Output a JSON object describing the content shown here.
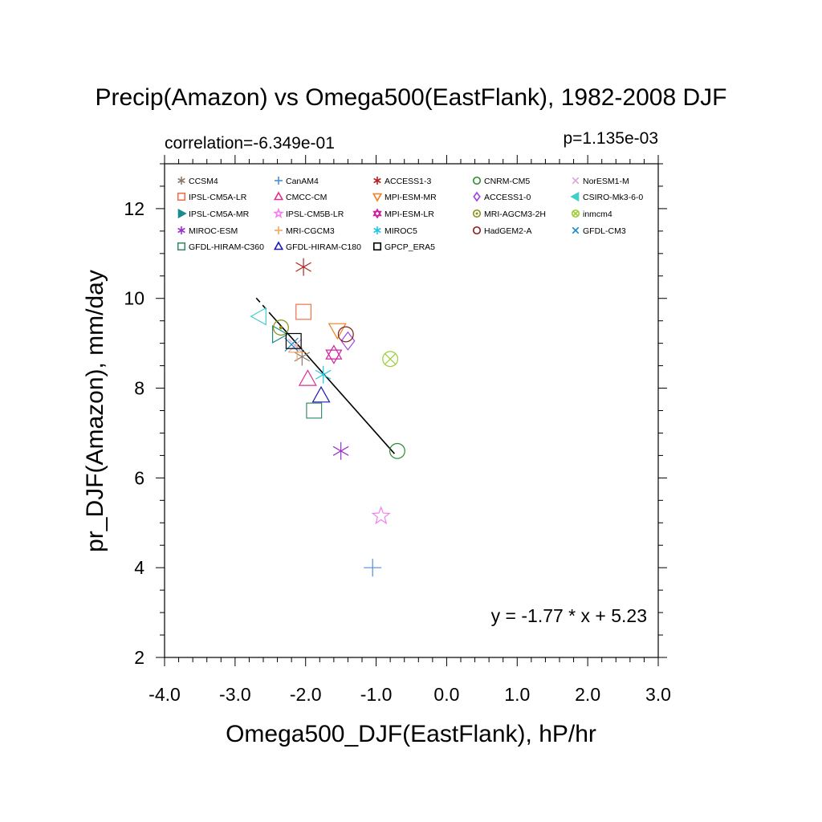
{
  "chart_data": {
    "type": "scatter",
    "title": "Precip(Amazon) vs Omega500(EastFlank), 1982-2008 DJF",
    "xlabel": "Omega500_DJF(EastFlank), hP/hr",
    "ylabel": "pr_DJF(Amazon), mm/day",
    "correlation_text": "correlation=-6.349e-01",
    "p_value_text": "p=1.135e-03",
    "equation_text": "y = -1.77 * x +  5.23",
    "xlim": [
      -4.0,
      3.0
    ],
    "ylim": [
      2,
      13
    ],
    "x_ticks": [
      "-4.0",
      "-3.0",
      "-2.0",
      "-1.0",
      "0.0",
      "1.0",
      "2.0",
      "3.0"
    ],
    "y_ticks": [
      "2",
      "4",
      "6",
      "8",
      "10",
      "12"
    ],
    "legend_placement": "top",
    "regression": {
      "slope": -1.77,
      "intercept": 5.23,
      "x_range": [
        -2.7,
        -0.74
      ],
      "dashed_x_range": [
        -2.7,
        -2.47
      ]
    },
    "points": [
      {
        "name": "CCSM4",
        "x": -2.05,
        "y": 8.7,
        "marker": "asterisk",
        "color": "#8c7b6b"
      },
      {
        "name": "CanAM4",
        "x": -1.05,
        "y": 4.0,
        "marker": "plus",
        "color": "#4a8fd4"
      },
      {
        "name": "ACCESS1-3",
        "x": -2.03,
        "y": 10.7,
        "marker": "asterisk",
        "color": "#b22222"
      },
      {
        "name": "CNRM-CM5",
        "x": -0.7,
        "y": 6.6,
        "marker": "circle",
        "color": "#2e8b2e"
      },
      {
        "name": "NorESM1-M",
        "x": -2.15,
        "y": 8.95,
        "marker": "x",
        "color": "#d8a8d8"
      },
      {
        "name": "IPSL-CM5A-LR",
        "x": -2.03,
        "y": 9.7,
        "marker": "square",
        "color": "#f07050"
      },
      {
        "name": "CMCC-CM",
        "x": -1.97,
        "y": 8.2,
        "marker": "triangle-up",
        "color": "#e0308c"
      },
      {
        "name": "MPI-ESM-MR",
        "x": -1.55,
        "y": 9.3,
        "marker": "triangle-down",
        "color": "#f07f1f"
      },
      {
        "name": "ACCESS1-0",
        "x": -1.4,
        "y": 9.05,
        "marker": "diamond",
        "color": "#a040e0"
      },
      {
        "name": "CSIRO-Mk3-6-0",
        "x": -2.65,
        "y": 9.6,
        "marker": "triangle-left",
        "color": "#40d0c8"
      },
      {
        "name": "IPSL-CM5A-MR",
        "x": -2.38,
        "y": 9.2,
        "marker": "triangle-right",
        "color": "#1a8c8c"
      },
      {
        "name": "IPSL-CM5B-LR",
        "x": -0.93,
        "y": 5.15,
        "marker": "star",
        "color": "#f080f0"
      },
      {
        "name": "MPI-ESM-LR",
        "x": -1.6,
        "y": 8.75,
        "marker": "hexagram",
        "color": "#d020a0"
      },
      {
        "name": "MRI-AGCM3-2H",
        "x": -2.35,
        "y": 9.35,
        "marker": "dot-circle",
        "color": "#8c8c1a"
      },
      {
        "name": "inmcm4",
        "x": -0.8,
        "y": 8.65,
        "marker": "x-circle",
        "color": "#9acd32"
      },
      {
        "name": "MIROC-ESM",
        "x": -1.5,
        "y": 6.6,
        "marker": "asterisk",
        "color": "#9932cc"
      },
      {
        "name": "MRI-CGCM3",
        "x": -2.12,
        "y": 8.8,
        "marker": "plus",
        "color": "#f4a460"
      },
      {
        "name": "MIROC5",
        "x": -1.75,
        "y": 8.3,
        "marker": "asterisk",
        "color": "#1ec8e6"
      },
      {
        "name": "HadGEM2-A",
        "x": -1.43,
        "y": 9.2,
        "marker": "circle",
        "color": "#8b1a1a"
      },
      {
        "name": "GFDL-CM3",
        "x": -2.2,
        "y": 8.97,
        "marker": "x",
        "color": "#1a90c8"
      },
      {
        "name": "GFDL-HIRAM-C360",
        "x": -1.88,
        "y": 7.5,
        "marker": "square",
        "color": "#3c8c6c"
      },
      {
        "name": "GFDL-HIRAM-C180",
        "x": -1.78,
        "y": 7.83,
        "marker": "triangle-up",
        "color": "#1a1ab4"
      },
      {
        "name": "GPCP_ERA5",
        "x": -2.17,
        "y": 9.05,
        "marker": "square",
        "color": "#000000"
      }
    ]
  }
}
